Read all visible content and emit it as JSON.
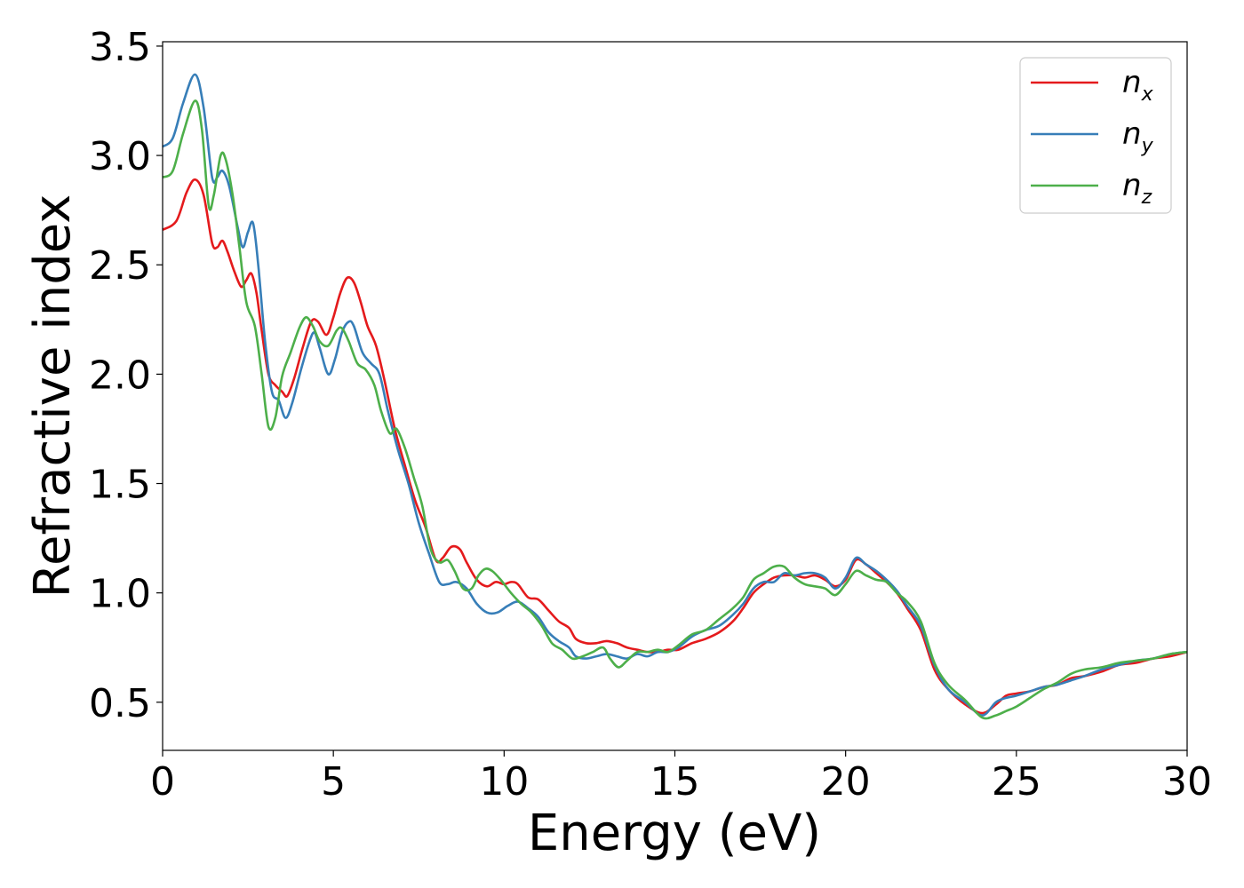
{
  "chart_data": {
    "type": "line",
    "title": "",
    "xlabel": "Energy (eV)",
    "ylabel": "Refractive index",
    "xlim": [
      0,
      30
    ],
    "ylim": [
      0.28,
      3.52
    ],
    "xticks": [
      0,
      5,
      10,
      15,
      20,
      25,
      30
    ],
    "xtick_labels": [
      "0",
      "5",
      "10",
      "15",
      "20",
      "25",
      "30"
    ],
    "yticks": [
      0.5,
      1.0,
      1.5,
      2.0,
      2.5,
      3.0,
      3.5
    ],
    "ytick_labels": [
      "0.5",
      "1.0",
      "1.5",
      "2.0",
      "2.5",
      "3.0",
      "3.5"
    ],
    "grid": false,
    "legend_position": "top-right",
    "series": [
      {
        "name": "n_x",
        "label_main": "n",
        "label_sub": "x",
        "color": "#e41a1c",
        "points": [
          [
            0,
            2.66
          ],
          [
            0.4,
            2.7
          ],
          [
            0.7,
            2.83
          ],
          [
            0.95,
            2.89
          ],
          [
            1.2,
            2.82
          ],
          [
            1.45,
            2.6
          ],
          [
            1.6,
            2.58
          ],
          [
            1.75,
            2.61
          ],
          [
            1.9,
            2.56
          ],
          [
            2.1,
            2.47
          ],
          [
            2.3,
            2.4
          ],
          [
            2.45,
            2.43
          ],
          [
            2.6,
            2.46
          ],
          [
            2.75,
            2.37
          ],
          [
            2.9,
            2.2
          ],
          [
            3.1,
            2.0
          ],
          [
            3.3,
            1.95
          ],
          [
            3.5,
            1.92
          ],
          [
            3.65,
            1.9
          ],
          [
            3.85,
            1.98
          ],
          [
            4.1,
            2.12
          ],
          [
            4.35,
            2.24
          ],
          [
            4.55,
            2.24
          ],
          [
            4.8,
            2.18
          ],
          [
            5.0,
            2.26
          ],
          [
            5.2,
            2.37
          ],
          [
            5.4,
            2.44
          ],
          [
            5.6,
            2.42
          ],
          [
            5.8,
            2.33
          ],
          [
            6.0,
            2.22
          ],
          [
            6.25,
            2.13
          ],
          [
            6.5,
            1.97
          ],
          [
            6.8,
            1.75
          ],
          [
            7.1,
            1.58
          ],
          [
            7.4,
            1.42
          ],
          [
            7.7,
            1.3
          ],
          [
            8.0,
            1.15
          ],
          [
            8.2,
            1.16
          ],
          [
            8.45,
            1.21
          ],
          [
            8.7,
            1.2
          ],
          [
            8.9,
            1.14
          ],
          [
            9.2,
            1.06
          ],
          [
            9.5,
            1.03
          ],
          [
            9.75,
            1.05
          ],
          [
            10.0,
            1.04
          ],
          [
            10.2,
            1.05
          ],
          [
            10.4,
            1.04
          ],
          [
            10.7,
            0.98
          ],
          [
            11.0,
            0.97
          ],
          [
            11.3,
            0.92
          ],
          [
            11.6,
            0.87
          ],
          [
            11.9,
            0.84
          ],
          [
            12.1,
            0.79
          ],
          [
            12.4,
            0.77
          ],
          [
            12.7,
            0.77
          ],
          [
            13.0,
            0.78
          ],
          [
            13.3,
            0.77
          ],
          [
            13.6,
            0.75
          ],
          [
            13.9,
            0.74
          ],
          [
            14.2,
            0.73
          ],
          [
            14.5,
            0.73
          ],
          [
            14.8,
            0.74
          ],
          [
            15.1,
            0.74
          ],
          [
            15.5,
            0.77
          ],
          [
            15.9,
            0.79
          ],
          [
            16.3,
            0.82
          ],
          [
            16.7,
            0.87
          ],
          [
            17.0,
            0.93
          ],
          [
            17.3,
            1.0
          ],
          [
            17.6,
            1.04
          ],
          [
            17.9,
            1.07
          ],
          [
            18.2,
            1.08
          ],
          [
            18.5,
            1.08
          ],
          [
            18.8,
            1.07
          ],
          [
            19.1,
            1.08
          ],
          [
            19.4,
            1.06
          ],
          [
            19.7,
            1.03
          ],
          [
            20.0,
            1.06
          ],
          [
            20.3,
            1.15
          ],
          [
            20.6,
            1.13
          ],
          [
            20.9,
            1.09
          ],
          [
            21.2,
            1.05
          ],
          [
            21.5,
            1.0
          ],
          [
            21.8,
            0.93
          ],
          [
            22.2,
            0.83
          ],
          [
            22.6,
            0.65
          ],
          [
            23.0,
            0.56
          ],
          [
            23.5,
            0.49
          ],
          [
            24.0,
            0.45
          ],
          [
            24.4,
            0.49
          ],
          [
            24.7,
            0.53
          ],
          [
            25.0,
            0.54
          ],
          [
            25.4,
            0.55
          ],
          [
            25.8,
            0.57
          ],
          [
            26.2,
            0.58
          ],
          [
            26.6,
            0.61
          ],
          [
            27.0,
            0.62
          ],
          [
            27.5,
            0.64
          ],
          [
            28.0,
            0.67
          ],
          [
            28.5,
            0.68
          ],
          [
            29.0,
            0.7
          ],
          [
            29.5,
            0.71
          ],
          [
            30.0,
            0.73
          ]
        ]
      },
      {
        "name": "n_y",
        "label_main": "n",
        "label_sub": "y",
        "color": "#377eb8",
        "points": [
          [
            0,
            3.04
          ],
          [
            0.3,
            3.08
          ],
          [
            0.6,
            3.24
          ],
          [
            0.95,
            3.37
          ],
          [
            1.2,
            3.22
          ],
          [
            1.45,
            2.9
          ],
          [
            1.6,
            2.9
          ],
          [
            1.75,
            2.93
          ],
          [
            1.95,
            2.86
          ],
          [
            2.2,
            2.67
          ],
          [
            2.35,
            2.58
          ],
          [
            2.5,
            2.65
          ],
          [
            2.65,
            2.69
          ],
          [
            2.8,
            2.5
          ],
          [
            3.0,
            2.15
          ],
          [
            3.2,
            1.92
          ],
          [
            3.4,
            1.88
          ],
          [
            3.6,
            1.8
          ],
          [
            3.8,
            1.87
          ],
          [
            4.05,
            2.02
          ],
          [
            4.3,
            2.15
          ],
          [
            4.45,
            2.19
          ],
          [
            4.6,
            2.12
          ],
          [
            4.85,
            2.0
          ],
          [
            5.05,
            2.07
          ],
          [
            5.25,
            2.19
          ],
          [
            5.45,
            2.24
          ],
          [
            5.6,
            2.22
          ],
          [
            5.85,
            2.1
          ],
          [
            6.1,
            2.05
          ],
          [
            6.35,
            2.0
          ],
          [
            6.6,
            1.83
          ],
          [
            6.9,
            1.65
          ],
          [
            7.2,
            1.5
          ],
          [
            7.5,
            1.32
          ],
          [
            7.8,
            1.18
          ],
          [
            8.1,
            1.05
          ],
          [
            8.35,
            1.04
          ],
          [
            8.6,
            1.05
          ],
          [
            8.9,
            1.02
          ],
          [
            9.2,
            0.95
          ],
          [
            9.5,
            0.91
          ],
          [
            9.8,
            0.91
          ],
          [
            10.1,
            0.94
          ],
          [
            10.4,
            0.96
          ],
          [
            10.7,
            0.93
          ],
          [
            11.0,
            0.89
          ],
          [
            11.3,
            0.82
          ],
          [
            11.6,
            0.78
          ],
          [
            11.9,
            0.75
          ],
          [
            12.1,
            0.71
          ],
          [
            12.4,
            0.7
          ],
          [
            12.7,
            0.71
          ],
          [
            13.0,
            0.72
          ],
          [
            13.3,
            0.71
          ],
          [
            13.6,
            0.7
          ],
          [
            13.9,
            0.72
          ],
          [
            14.2,
            0.71
          ],
          [
            14.5,
            0.73
          ],
          [
            14.8,
            0.73
          ],
          [
            15.1,
            0.75
          ],
          [
            15.5,
            0.8
          ],
          [
            15.9,
            0.83
          ],
          [
            16.3,
            0.85
          ],
          [
            16.7,
            0.9
          ],
          [
            17.0,
            0.95
          ],
          [
            17.3,
            1.02
          ],
          [
            17.6,
            1.05
          ],
          [
            17.9,
            1.05
          ],
          [
            18.2,
            1.09
          ],
          [
            18.5,
            1.08
          ],
          [
            18.8,
            1.09
          ],
          [
            19.1,
            1.09
          ],
          [
            19.4,
            1.07
          ],
          [
            19.7,
            1.02
          ],
          [
            20.0,
            1.07
          ],
          [
            20.3,
            1.16
          ],
          [
            20.6,
            1.13
          ],
          [
            20.9,
            1.1
          ],
          [
            21.2,
            1.06
          ],
          [
            21.5,
            1.01
          ],
          [
            21.8,
            0.94
          ],
          [
            22.2,
            0.85
          ],
          [
            22.6,
            0.67
          ],
          [
            23.0,
            0.56
          ],
          [
            23.5,
            0.5
          ],
          [
            24.0,
            0.44
          ],
          [
            24.4,
            0.5
          ],
          [
            24.7,
            0.52
          ],
          [
            25.0,
            0.53
          ],
          [
            25.4,
            0.55
          ],
          [
            25.8,
            0.57
          ],
          [
            26.2,
            0.58
          ],
          [
            26.6,
            0.6
          ],
          [
            27.0,
            0.62
          ],
          [
            27.5,
            0.65
          ],
          [
            28.0,
            0.67
          ],
          [
            28.5,
            0.69
          ],
          [
            29.0,
            0.7
          ],
          [
            29.5,
            0.72
          ],
          [
            30.0,
            0.73
          ]
        ]
      },
      {
        "name": "n_z",
        "label_main": "n",
        "label_sub": "z",
        "color": "#4daf4a",
        "points": [
          [
            0,
            2.9
          ],
          [
            0.3,
            2.93
          ],
          [
            0.6,
            3.1
          ],
          [
            0.95,
            3.25
          ],
          [
            1.15,
            3.12
          ],
          [
            1.35,
            2.77
          ],
          [
            1.5,
            2.82
          ],
          [
            1.7,
            3.0
          ],
          [
            1.85,
            2.98
          ],
          [
            2.05,
            2.82
          ],
          [
            2.25,
            2.58
          ],
          [
            2.45,
            2.33
          ],
          [
            2.7,
            2.22
          ],
          [
            2.9,
            2.0
          ],
          [
            3.1,
            1.76
          ],
          [
            3.3,
            1.8
          ],
          [
            3.5,
            1.99
          ],
          [
            3.75,
            2.1
          ],
          [
            4.0,
            2.21
          ],
          [
            4.2,
            2.26
          ],
          [
            4.4,
            2.22
          ],
          [
            4.6,
            2.15
          ],
          [
            4.85,
            2.13
          ],
          [
            5.1,
            2.2
          ],
          [
            5.25,
            2.21
          ],
          [
            5.45,
            2.15
          ],
          [
            5.7,
            2.05
          ],
          [
            5.95,
            2.02
          ],
          [
            6.2,
            1.95
          ],
          [
            6.4,
            1.83
          ],
          [
            6.65,
            1.73
          ],
          [
            6.85,
            1.75
          ],
          [
            7.1,
            1.66
          ],
          [
            7.35,
            1.53
          ],
          [
            7.6,
            1.4
          ],
          [
            7.85,
            1.2
          ],
          [
            8.1,
            1.14
          ],
          [
            8.35,
            1.15
          ],
          [
            8.55,
            1.1
          ],
          [
            8.8,
            1.02
          ],
          [
            9.05,
            1.02
          ],
          [
            9.25,
            1.08
          ],
          [
            9.45,
            1.11
          ],
          [
            9.65,
            1.1
          ],
          [
            9.9,
            1.06
          ],
          [
            10.2,
            1.0
          ],
          [
            10.5,
            0.95
          ],
          [
            10.8,
            0.91
          ],
          [
            11.1,
            0.85
          ],
          [
            11.4,
            0.77
          ],
          [
            11.7,
            0.74
          ],
          [
            12.0,
            0.7
          ],
          [
            12.3,
            0.71
          ],
          [
            12.6,
            0.73
          ],
          [
            12.9,
            0.75
          ],
          [
            13.1,
            0.7
          ],
          [
            13.35,
            0.66
          ],
          [
            13.6,
            0.69
          ],
          [
            13.9,
            0.73
          ],
          [
            14.2,
            0.73
          ],
          [
            14.5,
            0.74
          ],
          [
            14.8,
            0.73
          ],
          [
            15.1,
            0.76
          ],
          [
            15.5,
            0.81
          ],
          [
            15.9,
            0.83
          ],
          [
            16.3,
            0.88
          ],
          [
            16.7,
            0.93
          ],
          [
            17.0,
            0.98
          ],
          [
            17.3,
            1.06
          ],
          [
            17.6,
            1.09
          ],
          [
            17.9,
            1.12
          ],
          [
            18.2,
            1.12
          ],
          [
            18.5,
            1.07
          ],
          [
            18.8,
            1.04
          ],
          [
            19.1,
            1.03
          ],
          [
            19.4,
            1.02
          ],
          [
            19.7,
            0.99
          ],
          [
            20.0,
            1.04
          ],
          [
            20.3,
            1.1
          ],
          [
            20.6,
            1.08
          ],
          [
            20.9,
            1.06
          ],
          [
            21.2,
            1.05
          ],
          [
            21.5,
            1.0
          ],
          [
            21.8,
            0.96
          ],
          [
            22.2,
            0.87
          ],
          [
            22.6,
            0.68
          ],
          [
            23.0,
            0.58
          ],
          [
            23.5,
            0.51
          ],
          [
            24.0,
            0.43
          ],
          [
            24.4,
            0.44
          ],
          [
            24.7,
            0.46
          ],
          [
            25.0,
            0.48
          ],
          [
            25.4,
            0.52
          ],
          [
            25.8,
            0.56
          ],
          [
            26.2,
            0.59
          ],
          [
            26.6,
            0.63
          ],
          [
            27.0,
            0.65
          ],
          [
            27.5,
            0.66
          ],
          [
            28.0,
            0.68
          ],
          [
            28.5,
            0.69
          ],
          [
            29.0,
            0.7
          ],
          [
            29.5,
            0.72
          ],
          [
            30.0,
            0.73
          ]
        ]
      }
    ]
  }
}
